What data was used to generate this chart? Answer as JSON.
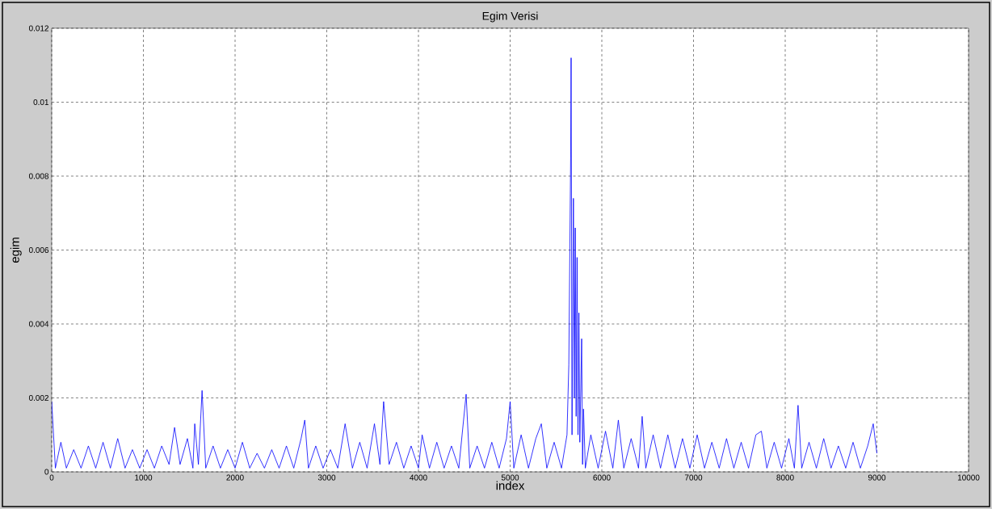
{
  "chart_data": {
    "type": "line",
    "title": "Egim Verisi",
    "xlabel": "index",
    "ylabel": "egim",
    "xlim": [
      0,
      10000
    ],
    "xticks": [
      0,
      1000,
      2000,
      3000,
      4000,
      5000,
      6000,
      7000,
      8000,
      9000,
      10000
    ],
    "ylim": [
      0,
      0.012
    ],
    "yticks": [
      0,
      0.002,
      0.004,
      0.006,
      0.008,
      0.01,
      0.012
    ],
    "grid": true,
    "series": [
      {
        "color": "#0000ff",
        "x": [
          0,
          40,
          100,
          160,
          240,
          320,
          400,
          480,
          560,
          640,
          720,
          800,
          880,
          960,
          1040,
          1120,
          1200,
          1280,
          1340,
          1400,
          1480,
          1540,
          1560,
          1600,
          1640,
          1680,
          1760,
          1840,
          1920,
          2000,
          2080,
          2160,
          2240,
          2320,
          2400,
          2480,
          2560,
          2640,
          2720,
          2760,
          2800,
          2880,
          2960,
          3040,
          3120,
          3200,
          3280,
          3360,
          3440,
          3520,
          3580,
          3620,
          3680,
          3760,
          3840,
          3920,
          4000,
          4040,
          4120,
          4200,
          4280,
          4360,
          4440,
          4520,
          4560,
          4640,
          4720,
          4800,
          4880,
          4960,
          5000,
          5040,
          5120,
          5200,
          5280,
          5340,
          5400,
          5480,
          5560,
          5620,
          5640,
          5660,
          5665,
          5675,
          5690,
          5700,
          5710,
          5720,
          5730,
          5740,
          5750,
          5760,
          5780,
          5790,
          5800,
          5820,
          5880,
          5960,
          6040,
          6120,
          6180,
          6240,
          6320,
          6400,
          6440,
          6480,
          6560,
          6640,
          6720,
          6800,
          6880,
          6960,
          7040,
          7120,
          7200,
          7280,
          7360,
          7440,
          7520,
          7600,
          7680,
          7740,
          7800,
          7880,
          7960,
          8040,
          8100,
          8140,
          8180,
          8260,
          8340,
          8420,
          8500,
          8580,
          8660,
          8740,
          8820,
          8900,
          8960,
          9000
        ],
        "values": [
          0.0019,
          0.0001,
          0.0008,
          0.0001,
          0.0006,
          0.0001,
          0.0007,
          0.0001,
          0.0008,
          0.0001,
          0.0009,
          0.0001,
          0.0006,
          0.0001,
          0.0006,
          0.0001,
          0.0007,
          0.0002,
          0.0012,
          0.0002,
          0.0009,
          0.0001,
          0.0013,
          0.0002,
          0.0022,
          0.0001,
          0.0007,
          0.0001,
          0.0006,
          0.0001,
          0.0008,
          0.0001,
          0.0005,
          0.0001,
          0.0006,
          0.0001,
          0.0007,
          0.0001,
          0.0009,
          0.0014,
          0.0001,
          0.0007,
          0.0001,
          0.0006,
          0.0001,
          0.0013,
          0.0001,
          0.0008,
          0.0001,
          0.0013,
          0.0002,
          0.0019,
          0.0002,
          0.0008,
          0.0001,
          0.0007,
          0.0001,
          0.001,
          0.0001,
          0.0008,
          0.0001,
          0.0007,
          0.0001,
          0.0021,
          0.0001,
          0.0007,
          0.0001,
          0.0008,
          0.0001,
          0.0009,
          0.0019,
          0.0001,
          0.001,
          0.0001,
          0.0009,
          0.0013,
          0.0001,
          0.0008,
          0.0001,
          0.001,
          0.0029,
          0.0085,
          0.0112,
          0.001,
          0.0074,
          0.002,
          0.0066,
          0.0015,
          0.0058,
          0.001,
          0.0043,
          0.0008,
          0.0036,
          0.0002,
          0.0017,
          0.0001,
          0.001,
          0.0001,
          0.0011,
          0.0001,
          0.0014,
          0.0001,
          0.0009,
          0.0001,
          0.0015,
          0.0001,
          0.001,
          0.0001,
          0.001,
          0.0001,
          0.0009,
          0.0001,
          0.001,
          0.0001,
          0.0008,
          0.0001,
          0.0009,
          0.0001,
          0.0008,
          0.0001,
          0.001,
          0.0011,
          0.0001,
          0.0008,
          0.0001,
          0.0009,
          0.0001,
          0.0018,
          0.0001,
          0.0008,
          0.0001,
          0.0009,
          0.0001,
          0.0007,
          0.0001,
          0.0008,
          0.0001,
          0.0007,
          0.0013,
          0.0005
        ]
      }
    ]
  }
}
